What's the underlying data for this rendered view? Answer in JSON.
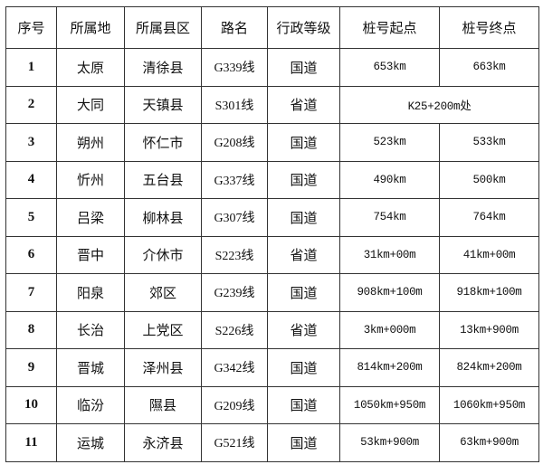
{
  "headers": [
    "序号",
    "所属地",
    "所属县区",
    "路名",
    "行政等级",
    "桩号起点",
    "桩号终点"
  ],
  "rows": [
    {
      "no": "1",
      "city": "太原",
      "county": "清徐县",
      "road": "G339线",
      "level": "国道",
      "start": "653km",
      "end": "663km"
    },
    {
      "no": "2",
      "city": "大同",
      "county": "天镇县",
      "road": "S301线",
      "level": "省道",
      "location": "K25+200m处"
    },
    {
      "no": "3",
      "city": "朔州",
      "county": "怀仁市",
      "road": "G208线",
      "level": "国道",
      "start": "523km",
      "end": "533km"
    },
    {
      "no": "4",
      "city": "忻州",
      "county": "五台县",
      "road": "G337线",
      "level": "国道",
      "start": "490km",
      "end": "500km"
    },
    {
      "no": "5",
      "city": "吕梁",
      "county": "柳林县",
      "road": "G307线",
      "level": "国道",
      "start": "754km",
      "end": "764km"
    },
    {
      "no": "6",
      "city": "晋中",
      "county": "介休市",
      "road": "S223线",
      "level": "省道",
      "start": "31km+00m",
      "end": "41km+00m"
    },
    {
      "no": "7",
      "city": "阳泉",
      "county": "郊区",
      "road": "G239线",
      "level": "国道",
      "start": "908km+100m",
      "end": "918km+100m"
    },
    {
      "no": "8",
      "city": "长治",
      "county": "上党区",
      "road": "S226线",
      "level": "省道",
      "start": "3km+000m",
      "end": "13km+900m"
    },
    {
      "no": "9",
      "city": "晋城",
      "county": "泽州县",
      "road": "G342线",
      "level": "国道",
      "start": "814km+200m",
      "end": "824km+200m"
    },
    {
      "no": "10",
      "city": "临汾",
      "county": "隰县",
      "road": "G209线",
      "level": "国道",
      "start": "1050km+950m",
      "end": "1060km+950m"
    },
    {
      "no": "11",
      "city": "运城",
      "county": "永济县",
      "road": "G521线",
      "level": "国道",
      "start": "53km+900m",
      "end": "63km+900m"
    }
  ]
}
